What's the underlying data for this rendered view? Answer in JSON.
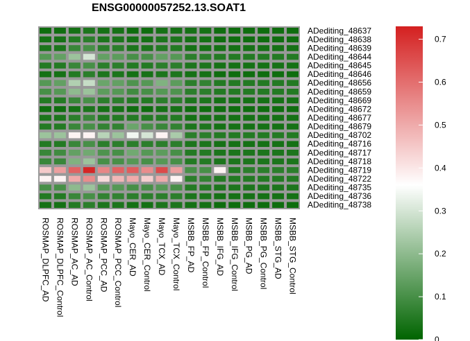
{
  "chart_data": {
    "type": "heatmap",
    "title": "ENSG00000057252.13.SOAT1",
    "rows": [
      "ADediting_48637",
      "ADediting_48638",
      "ADediting_48639",
      "ADediting_48644",
      "ADediting_48645",
      "ADediting_48646",
      "ADediting_48656",
      "ADediting_48659",
      "ADediting_48669",
      "ADediting_48672",
      "ADediting_48677",
      "ADediting_48679",
      "ADediting_48702",
      "ADediting_48716",
      "ADediting_48717",
      "ADediting_48718",
      "ADediting_48719",
      "ADediting_48722",
      "ADediting_48735",
      "ADediting_48736",
      "ADediting_48738"
    ],
    "columns": [
      "ROSMAP_DLPFC_AD",
      "ROSMAP_DLPFC_Control",
      "ROSMAP_AC_AD",
      "ROSMAP_AC_Control",
      "ROSMAP_PCC_AD",
      "ROSMAP_PCC_Control",
      "Mayo_CER_AD",
      "Mayo_CER_Control",
      "Mayo_TCX_AD",
      "Mayo_TCX_Control",
      "MSBB_FP_AD",
      "MSBB_FP_Control",
      "MSBB_IFG_AD",
      "MSBB_IFG_Control",
      "MSBB_PG_AD",
      "MSBB_PG_Control",
      "MSBB_STG_AD",
      "MSBB_STG_Control"
    ],
    "values": [
      [
        0.02,
        0.02,
        0.03,
        0.04,
        0.03,
        0.03,
        0.02,
        0.02,
        0.03,
        0.03,
        0.03,
        0.03,
        0.02,
        0.02,
        0.02,
        0.02,
        0.02,
        0.02
      ],
      [
        0.03,
        0.03,
        0.05,
        0.06,
        0.04,
        0.04,
        0.03,
        0.03,
        0.04,
        0.04,
        0.03,
        0.03,
        0.02,
        0.02,
        0.02,
        0.02,
        0.02,
        0.02
      ],
      [
        0.04,
        0.04,
        0.08,
        0.1,
        0.06,
        0.06,
        0.04,
        0.04,
        0.05,
        0.05,
        0.03,
        0.03,
        0.03,
        0.03,
        0.03,
        0.03,
        0.03,
        0.03
      ],
      [
        0.12,
        0.14,
        0.22,
        0.3,
        0.14,
        0.13,
        0.1,
        0.1,
        0.14,
        0.12,
        0.06,
        0.06,
        0.05,
        0.05,
        0.05,
        0.05,
        0.05,
        0.05
      ],
      [
        0.05,
        0.05,
        0.08,
        0.1,
        0.06,
        0.06,
        0.05,
        0.05,
        0.06,
        0.06,
        0.04,
        0.04,
        0.03,
        0.03,
        0.03,
        0.03,
        0.03,
        0.03
      ],
      [
        0.03,
        0.03,
        0.05,
        0.06,
        0.04,
        0.04,
        0.03,
        0.03,
        0.04,
        0.04,
        0.03,
        0.03,
        0.02,
        0.02,
        0.02,
        0.02,
        0.02,
        0.02
      ],
      [
        0.12,
        0.14,
        0.25,
        0.28,
        0.15,
        0.14,
        0.11,
        0.12,
        0.18,
        0.13,
        0.06,
        0.07,
        0.05,
        0.05,
        0.05,
        0.05,
        0.05,
        0.05
      ],
      [
        0.1,
        0.12,
        0.2,
        0.22,
        0.13,
        0.12,
        0.09,
        0.1,
        0.12,
        0.11,
        0.06,
        0.06,
        0.05,
        0.05,
        0.05,
        0.05,
        0.05,
        0.05
      ],
      [
        0.05,
        0.05,
        0.08,
        0.1,
        0.06,
        0.06,
        0.05,
        0.05,
        0.06,
        0.06,
        0.04,
        0.04,
        0.03,
        0.03,
        0.03,
        0.03,
        0.03,
        0.03
      ],
      [
        0.02,
        0.02,
        0.03,
        0.04,
        0.03,
        0.03,
        0.02,
        0.02,
        0.03,
        0.03,
        0.02,
        0.02,
        0.02,
        0.02,
        0.02,
        0.02,
        0.02,
        0.02
      ],
      [
        0.04,
        0.04,
        0.06,
        0.08,
        0.05,
        0.05,
        0.05,
        0.05,
        0.05,
        0.05,
        0.03,
        0.03,
        0.03,
        0.03,
        0.03,
        0.03,
        0.03,
        0.03
      ],
      [
        0.05,
        0.05,
        0.08,
        0.1,
        0.07,
        0.07,
        0.15,
        0.1,
        0.08,
        0.07,
        0.04,
        0.04,
        0.03,
        0.03,
        0.03,
        0.03,
        0.03,
        0.03
      ],
      [
        0.22,
        0.22,
        0.38,
        0.38,
        0.26,
        0.22,
        0.34,
        0.3,
        0.38,
        0.24,
        0.06,
        0.06,
        0.05,
        0.05,
        0.05,
        0.05,
        0.05,
        0.05
      ],
      [
        0.05,
        0.05,
        0.08,
        0.1,
        0.06,
        0.06,
        0.06,
        0.06,
        0.06,
        0.06,
        0.04,
        0.04,
        0.03,
        0.03,
        0.03,
        0.03,
        0.03,
        0.03
      ],
      [
        0.08,
        0.09,
        0.14,
        0.16,
        0.11,
        0.1,
        0.16,
        0.12,
        0.13,
        0.1,
        0.05,
        0.05,
        0.04,
        0.04,
        0.04,
        0.04,
        0.04,
        0.04
      ],
      [
        0.08,
        0.08,
        0.18,
        0.22,
        0.1,
        0.1,
        0.12,
        0.1,
        0.12,
        0.1,
        0.05,
        0.05,
        0.04,
        0.04,
        0.04,
        0.04,
        0.04,
        0.04
      ],
      [
        0.45,
        0.52,
        0.62,
        0.72,
        0.56,
        0.62,
        0.63,
        0.55,
        0.66,
        0.52,
        0.1,
        0.1,
        0.38,
        0.05,
        0.06,
        0.06,
        0.06,
        0.06
      ],
      [
        0.38,
        0.38,
        0.5,
        0.55,
        0.42,
        0.48,
        0.5,
        0.44,
        0.5,
        0.38,
        0.06,
        0.07,
        0.05,
        0.05,
        0.05,
        0.05,
        0.05,
        0.05
      ],
      [
        0.1,
        0.1,
        0.2,
        0.22,
        0.12,
        0.12,
        0.1,
        0.1,
        0.12,
        0.1,
        0.05,
        0.05,
        0.04,
        0.04,
        0.04,
        0.04,
        0.04,
        0.04
      ],
      [
        0.05,
        0.05,
        0.08,
        0.1,
        0.07,
        0.07,
        0.06,
        0.06,
        0.06,
        0.06,
        0.04,
        0.04,
        0.03,
        0.03,
        0.03,
        0.03,
        0.03,
        0.03
      ],
      [
        0.03,
        0.03,
        0.05,
        0.06,
        0.04,
        0.04,
        0.03,
        0.03,
        0.04,
        0.04,
        0.03,
        0.03,
        0.02,
        0.02,
        0.02,
        0.02,
        0.02,
        0.02
      ]
    ],
    "color_scale": {
      "min": 0,
      "mid": 0.36,
      "max": 0.73,
      "low_color": "#006400",
      "mid_color": "#ffffff",
      "high_color": "#d42020"
    },
    "legend": {
      "ticks": [
        0,
        0.1,
        0.2,
        0.3,
        0.4,
        0.5,
        0.6,
        0.7
      ],
      "tick_labels": [
        "0",
        "0.1",
        "0.2",
        "0.3",
        "0.4",
        "0.5",
        "0.6",
        "0.7"
      ],
      "placement": "right"
    },
    "grid_color": "#999999"
  }
}
